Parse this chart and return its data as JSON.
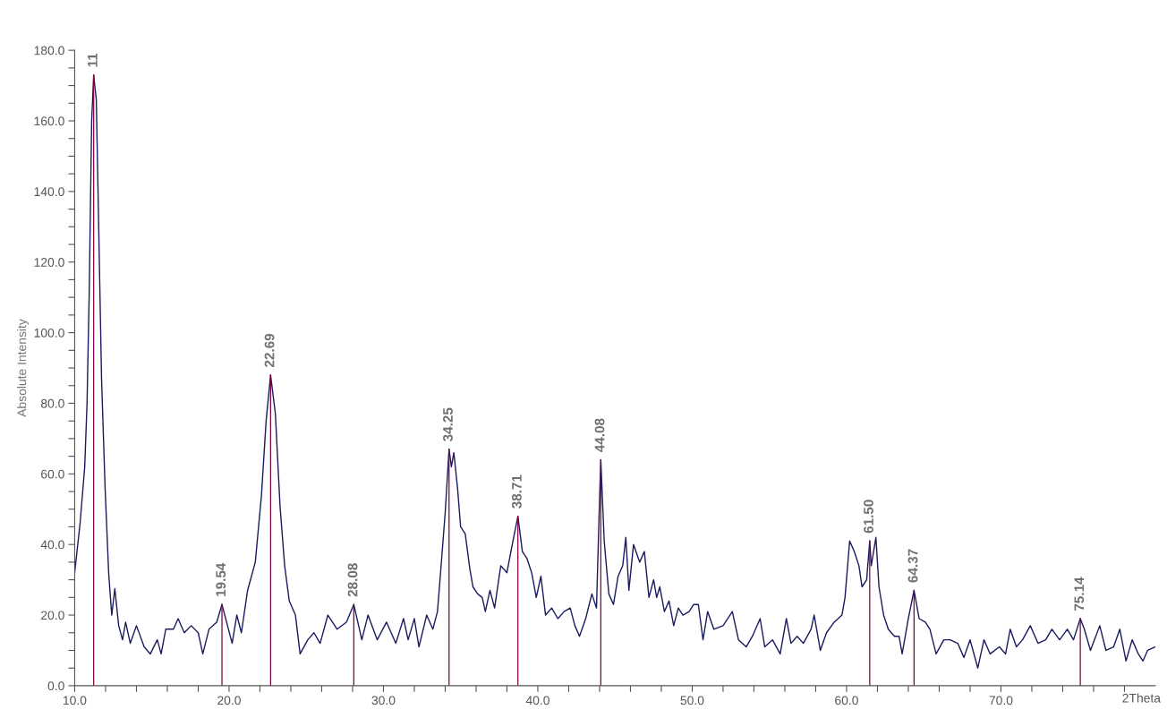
{
  "chart_data": {
    "type": "line",
    "xlabel": "2Theta",
    "ylabel": "Absolute Intensity",
    "xlim": [
      10,
      80
    ],
    "ylim": [
      0,
      180
    ],
    "xticks": [
      {
        "value": 10,
        "label": "10.0"
      },
      {
        "value": 12,
        "label": null
      },
      {
        "value": 14,
        "label": null
      },
      {
        "value": 16,
        "label": null
      },
      {
        "value": 18,
        "label": null
      },
      {
        "value": 20,
        "label": "20.0"
      },
      {
        "value": 22,
        "label": null
      },
      {
        "value": 24,
        "label": null
      },
      {
        "value": 26,
        "label": null
      },
      {
        "value": 28,
        "label": null
      },
      {
        "value": 30,
        "label": "30.0"
      },
      {
        "value": 32,
        "label": null
      },
      {
        "value": 34,
        "label": null
      },
      {
        "value": 36,
        "label": null
      },
      {
        "value": 38,
        "label": null
      },
      {
        "value": 40,
        "label": "40.0"
      },
      {
        "value": 42,
        "label": null
      },
      {
        "value": 44,
        "label": null
      },
      {
        "value": 46,
        "label": null
      },
      {
        "value": 48,
        "label": null
      },
      {
        "value": 50,
        "label": "50.0"
      },
      {
        "value": 52,
        "label": null
      },
      {
        "value": 54,
        "label": null
      },
      {
        "value": 56,
        "label": null
      },
      {
        "value": 58,
        "label": null
      },
      {
        "value": 60,
        "label": "60.0"
      },
      {
        "value": 62,
        "label": null
      },
      {
        "value": 64,
        "label": null
      },
      {
        "value": 66,
        "label": null
      },
      {
        "value": 68,
        "label": null
      },
      {
        "value": 70,
        "label": "70.0"
      },
      {
        "value": 72,
        "label": null
      },
      {
        "value": 74,
        "label": null
      },
      {
        "value": 76,
        "label": null
      },
      {
        "value": 78,
        "label": null
      }
    ],
    "yticks": [
      {
        "value": 0,
        "label": "0.0"
      },
      {
        "value": 5,
        "label": null
      },
      {
        "value": 10,
        "label": null
      },
      {
        "value": 15,
        "label": null
      },
      {
        "value": 20,
        "label": "20.0"
      },
      {
        "value": 25,
        "label": null
      },
      {
        "value": 30,
        "label": null
      },
      {
        "value": 35,
        "label": null
      },
      {
        "value": 40,
        "label": "40.0"
      },
      {
        "value": 45,
        "label": null
      },
      {
        "value": 50,
        "label": null
      },
      {
        "value": 55,
        "label": null
      },
      {
        "value": 60,
        "label": "60.0"
      },
      {
        "value": 65,
        "label": null
      },
      {
        "value": 70,
        "label": null
      },
      {
        "value": 75,
        "label": null
      },
      {
        "value": 80,
        "label": "80.0"
      },
      {
        "value": 85,
        "label": null
      },
      {
        "value": 90,
        "label": null
      },
      {
        "value": 95,
        "label": null
      },
      {
        "value": 100,
        "label": "100.0"
      },
      {
        "value": 105,
        "label": null
      },
      {
        "value": 110,
        "label": null
      },
      {
        "value": 115,
        "label": null
      },
      {
        "value": 120,
        "label": "120.0"
      },
      {
        "value": 125,
        "label": null
      },
      {
        "value": 130,
        "label": null
      },
      {
        "value": 135,
        "label": null
      },
      {
        "value": 140,
        "label": "140.0"
      },
      {
        "value": 145,
        "label": null
      },
      {
        "value": 150,
        "label": null
      },
      {
        "value": 155,
        "label": null
      },
      {
        "value": 160,
        "label": "160.0"
      },
      {
        "value": 165,
        "label": null
      },
      {
        "value": 170,
        "label": null
      },
      {
        "value": 175,
        "label": null
      },
      {
        "value": 180,
        "label": "180.0"
      }
    ],
    "grid": false,
    "marker": "none",
    "line_style": "solid",
    "series": [
      {
        "color": "#1a1a5e",
        "x": [
          10,
          10.35,
          10.65,
          10.8,
          10.94,
          11.1,
          11.23,
          11.4,
          11.53,
          11.74,
          11.97,
          12.2,
          12.4,
          12.6,
          12.85,
          13.1,
          13.3,
          13.6,
          14.0,
          14.5,
          14.9,
          15.35,
          15.6,
          15.9,
          16.4,
          16.7,
          17.1,
          17.55,
          18.0,
          18.3,
          18.7,
          19.2,
          19.54,
          19.9,
          20.2,
          20.5,
          20.8,
          21.2,
          21.7,
          22.1,
          22.4,
          22.69,
          23.0,
          23.3,
          23.6,
          23.9,
          24.3,
          24.6,
          25.1,
          25.5,
          25.9,
          26.4,
          27.0,
          27.6,
          28.08,
          28.6,
          29.0,
          29.6,
          30.2,
          30.8,
          31.3,
          31.6,
          32.0,
          32.3,
          32.8,
          33.2,
          33.5,
          33.7,
          34.0,
          34.25,
          34.4,
          34.56,
          34.8,
          35.0,
          35.3,
          35.6,
          35.8,
          36.1,
          36.4,
          36.6,
          36.9,
          37.2,
          37.6,
          38.0,
          38.3,
          38.71,
          39.0,
          39.3,
          39.6,
          39.9,
          40.2,
          40.5,
          40.9,
          41.3,
          41.7,
          42.1,
          42.4,
          42.7,
          43.1,
          43.5,
          43.8,
          44.0,
          44.08,
          44.3,
          44.6,
          44.9,
          45.2,
          45.5,
          45.7,
          45.9,
          46.2,
          46.6,
          46.9,
          47.2,
          47.5,
          47.7,
          47.9,
          48.2,
          48.5,
          48.8,
          49.1,
          49.4,
          49.8,
          50.1,
          50.4,
          50.7,
          51.0,
          51.4,
          52.0,
          52.6,
          53.0,
          53.5,
          53.9,
          54.4,
          54.7,
          55.2,
          55.7,
          56.1,
          56.4,
          56.8,
          57.2,
          57.7,
          57.9,
          58.3,
          58.7,
          59.2,
          59.7,
          59.9,
          60.2,
          60.5,
          60.8,
          61.0,
          61.3,
          61.5,
          61.6,
          61.9,
          62.1,
          62.4,
          62.7,
          63.1,
          63.4,
          63.6,
          64.0,
          64.37,
          64.7,
          65.1,
          65.4,
          65.8,
          66.3,
          66.7,
          67.2,
          67.6,
          68.0,
          68.5,
          68.9,
          69.3,
          69.9,
          70.3,
          70.6,
          71.0,
          71.4,
          71.9,
          72.4,
          72.9,
          73.3,
          73.8,
          74.3,
          74.7,
          75.14,
          75.4,
          75.8,
          76.4,
          76.8,
          77.3,
          77.7,
          78.1,
          78.5,
          78.9,
          79.2,
          79.5,
          80.0
        ],
        "values": [
          32,
          46,
          62,
          80,
          111,
          160,
          173,
          166,
          136,
          87,
          56,
          32,
          20,
          27.5,
          17,
          13,
          18,
          12,
          17,
          11,
          9,
          13,
          9,
          16,
          16,
          19,
          15,
          17,
          15,
          9,
          16,
          18,
          23,
          17,
          12,
          20,
          15,
          27,
          35,
          54,
          75,
          88,
          77,
          51,
          34,
          24,
          20,
          9,
          13,
          15,
          12,
          20,
          16,
          18,
          23,
          13,
          20,
          13,
          18,
          12,
          19,
          13,
          19,
          11,
          20,
          16,
          21,
          32,
          49,
          67,
          62,
          66,
          56,
          45,
          43,
          33,
          28,
          26,
          25,
          21,
          27,
          22,
          34,
          32,
          39,
          48,
          38,
          36,
          32,
          25,
          31,
          20,
          22,
          19,
          21,
          22,
          17,
          14,
          19,
          26,
          22,
          53,
          64,
          41,
          26,
          23,
          31,
          34,
          42,
          27,
          40,
          35,
          38,
          25,
          30,
          25,
          28,
          21,
          24,
          17,
          22,
          20,
          21,
          23,
          23,
          13,
          21,
          16,
          17,
          21,
          13,
          11,
          14,
          19,
          11,
          13,
          9,
          19,
          12,
          14,
          12,
          16,
          20,
          10,
          15,
          18,
          20,
          25,
          41,
          38,
          34,
          28,
          30,
          41,
          34,
          42,
          28,
          20,
          16,
          14,
          14,
          9,
          19,
          27,
          19,
          18,
          16,
          9,
          13,
          13,
          12,
          8,
          13,
          5,
          13,
          9,
          11,
          9,
          16,
          11,
          13,
          17,
          12,
          13,
          16,
          13,
          16,
          13,
          19,
          16,
          10,
          17,
          10,
          11,
          16,
          7,
          13,
          9,
          7,
          10,
          11
        ]
      }
    ],
    "ref_lines": [
      {
        "axis": "x",
        "value": 11.23,
        "label": "11",
        "color": "#800040"
      },
      {
        "axis": "x",
        "value": 19.54,
        "label": "19.54",
        "color": "#800040"
      },
      {
        "axis": "x",
        "value": 22.69,
        "label": "22.69",
        "color": "#800040"
      },
      {
        "axis": "x",
        "value": 28.08,
        "label": "28.08",
        "color": "#800040"
      },
      {
        "axis": "x",
        "value": 34.25,
        "label": "34.25",
        "color": "#800040"
      },
      {
        "axis": "x",
        "value": 38.71,
        "label": "38.71",
        "color": "#800040"
      },
      {
        "axis": "x",
        "value": 44.08,
        "label": "44.08",
        "color": "#800040"
      },
      {
        "axis": "x",
        "value": 61.5,
        "label": "61.50",
        "color": "#800040"
      },
      {
        "axis": "x",
        "value": 64.37,
        "label": "64.37",
        "color": "#800040"
      },
      {
        "axis": "x",
        "value": 75.14,
        "label": "75.14",
        "color": "#800040"
      }
    ]
  }
}
